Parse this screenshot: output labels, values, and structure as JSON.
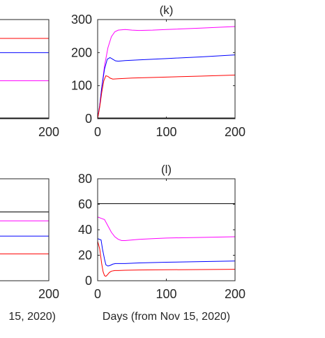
{
  "chart_data": [
    {
      "panel": "top-left (partial)",
      "type": "line",
      "title": "",
      "xlabel": "",
      "ylabel": "",
      "x_ticks": [
        "200"
      ],
      "y_ticks": [],
      "series": [
        {
          "color": "#ff0000",
          "x": [
            0,
            200
          ],
          "y": [
            243,
            243
          ]
        },
        {
          "color": "#0000ff",
          "x": [
            0,
            200
          ],
          "y": [
            200,
            200
          ]
        },
        {
          "color": "#ff00ff",
          "x": [
            0,
            200
          ],
          "y": [
            115,
            115
          ]
        },
        {
          "color": "#000000",
          "x": [
            0,
            200
          ],
          "y": [
            2,
            2
          ]
        }
      ]
    },
    {
      "panel": "top-right",
      "type": "line",
      "title": "(k)",
      "xlabel": "",
      "ylabel": "",
      "xlim": [
        0,
        200
      ],
      "ylim": [
        0,
        300
      ],
      "x_ticks": [
        "0",
        "100",
        "200"
      ],
      "y_ticks": [
        "0",
        "100",
        "200",
        "300"
      ],
      "series": [
        {
          "color": "#ff00ff",
          "x": [
            0,
            3,
            6,
            10,
            15,
            20,
            25,
            30,
            40,
            50,
            60,
            80,
            100,
            150,
            200
          ],
          "y": [
            0,
            40,
            95,
            160,
            215,
            248,
            263,
            268,
            270,
            268,
            267,
            268,
            270,
            274,
            279
          ]
        },
        {
          "color": "#0000ff",
          "x": [
            0,
            3,
            6,
            10,
            14,
            18,
            22,
            26,
            30,
            40,
            60,
            100,
            150,
            200
          ],
          "y": [
            0,
            40,
            95,
            150,
            180,
            185,
            180,
            175,
            174,
            176,
            178,
            182,
            187,
            193
          ]
        },
        {
          "color": "#ff0000",
          "x": [
            0,
            3,
            6,
            9,
            12,
            15,
            18,
            22,
            30,
            50,
            100,
            150,
            200
          ],
          "y": [
            0,
            35,
            80,
            115,
            130,
            128,
            123,
            120,
            121,
            123,
            126,
            129,
            132
          ]
        },
        {
          "color": "#000000",
          "x": [
            0,
            200
          ],
          "y": [
            2,
            2
          ]
        }
      ]
    },
    {
      "panel": "bottom-left (partial)",
      "type": "line",
      "title": "",
      "xlabel": "15, 2020)",
      "ylabel": "",
      "x_ticks": [
        "200"
      ],
      "y_ticks": [],
      "series": [
        {
          "color": "#000000",
          "x": [
            0,
            200
          ],
          "y": [
            54,
            54
          ]
        },
        {
          "color": "#ff00ff",
          "x": [
            0,
            200
          ],
          "y": [
            47,
            47
          ]
        },
        {
          "color": "#0000ff",
          "x": [
            0,
            200
          ],
          "y": [
            35,
            35
          ]
        },
        {
          "color": "#ff0000",
          "x": [
            0,
            200
          ],
          "y": [
            21,
            21
          ]
        }
      ]
    },
    {
      "panel": "bottom-right",
      "type": "line",
      "title": "(l)",
      "xlabel": "Days (from Nov 15, 2020)",
      "ylabel": "",
      "xlim": [
        0,
        200
      ],
      "ylim": [
        0,
        80
      ],
      "x_ticks": [
        "0",
        "100",
        "200"
      ],
      "y_ticks": [
        "0",
        "20",
        "40",
        "60",
        "80"
      ],
      "series": [
        {
          "color": "#000000",
          "x": [
            0,
            200
          ],
          "y": [
            60.5,
            60.5
          ]
        },
        {
          "color": "#ff00ff",
          "x": [
            0,
            5,
            10,
            15,
            20,
            25,
            30,
            35,
            40,
            50,
            60,
            80,
            100,
            150,
            200
          ],
          "y": [
            50,
            49,
            48,
            43,
            38,
            34.5,
            32.5,
            31.5,
            31.5,
            32,
            32.5,
            33,
            33.5,
            34,
            34.5
          ]
        },
        {
          "color": "#0000ff",
          "x": [
            0,
            5,
            7,
            10,
            12,
            15,
            18,
            22,
            26,
            30,
            40,
            60,
            100,
            150,
            200
          ],
          "y": [
            33,
            32,
            25,
            17,
            12.5,
            11.5,
            12,
            13,
            13.5,
            13.5,
            13.5,
            14,
            14.5,
            15,
            15.5
          ]
        },
        {
          "color": "#ff0000",
          "x": [
            0,
            3,
            6,
            8,
            10,
            12,
            14,
            17,
            20,
            25,
            30,
            40,
            60,
            100,
            150,
            200
          ],
          "y": [
            31,
            25,
            13,
            7,
            4,
            3.5,
            4.5,
            6.5,
            7.5,
            8,
            8,
            8.2,
            8.4,
            8.6,
            8.8,
            9
          ]
        }
      ]
    }
  ]
}
